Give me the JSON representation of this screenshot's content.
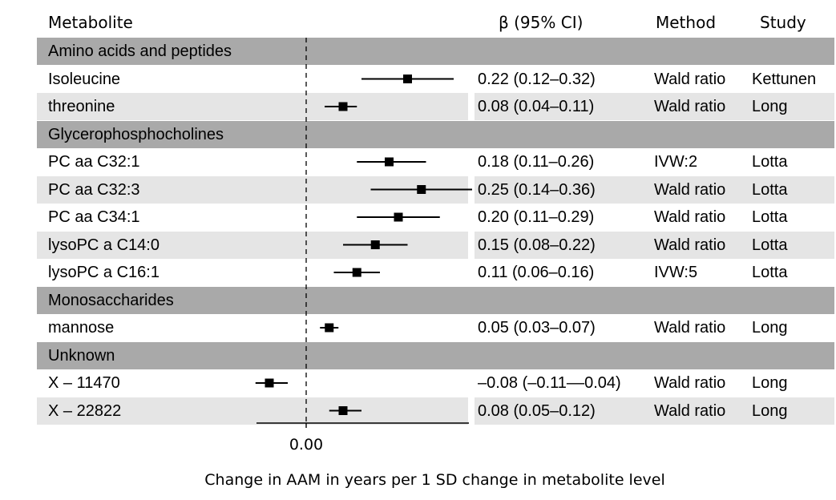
{
  "chart_data": {
    "type": "forest",
    "headers": {
      "metabolite": "Metabolite",
      "beta": "β (95% CI)",
      "method": "Method",
      "study": "Study"
    },
    "xlabel": "Change in AAM in years per 1 SD change in metabolite level",
    "xlim": [
      -0.12,
      0.36
    ],
    "reference_line": 0.0,
    "reference_label": "0.00",
    "rows": [
      {
        "kind": "group",
        "label": "Amino acids and peptides"
      },
      {
        "kind": "item",
        "label": "Isoleucine",
        "beta": 0.22,
        "lo": 0.12,
        "hi": 0.32,
        "ci_text": "0.22 (0.12–0.32)",
        "method": "Wald ratio",
        "study": "Kettunen"
      },
      {
        "kind": "item",
        "label": "threonine",
        "beta": 0.08,
        "lo": 0.04,
        "hi": 0.11,
        "ci_text": "0.08 (0.04–0.11)",
        "method": "Wald ratio",
        "study": "Long"
      },
      {
        "kind": "group",
        "label": "Glycerophosphocholines"
      },
      {
        "kind": "item",
        "label": "PC aa C32:1",
        "beta": 0.18,
        "lo": 0.11,
        "hi": 0.26,
        "ci_text": "0.18 (0.11–0.26)",
        "method": "IVW:2",
        "study": "Lotta"
      },
      {
        "kind": "item",
        "label": "PC aa C32:3",
        "beta": 0.25,
        "lo": 0.14,
        "hi": 0.36,
        "ci_text": "0.25 (0.14–0.36)",
        "method": "Wald ratio",
        "study": "Lotta"
      },
      {
        "kind": "item",
        "label": "PC aa C34:1",
        "beta": 0.2,
        "lo": 0.11,
        "hi": 0.29,
        "ci_text": "0.20 (0.11–0.29)",
        "method": "Wald ratio",
        "study": "Lotta"
      },
      {
        "kind": "item",
        "label": "lysoPC a C14:0",
        "beta": 0.15,
        "lo": 0.08,
        "hi": 0.22,
        "ci_text": "0.15 (0.08–0.22)",
        "method": "Wald ratio",
        "study": "Lotta"
      },
      {
        "kind": "item",
        "label": "lysoPC a C16:1",
        "beta": 0.11,
        "lo": 0.06,
        "hi": 0.16,
        "ci_text": "0.11 (0.06–0.16)",
        "method": "IVW:5",
        "study": "Lotta"
      },
      {
        "kind": "group",
        "label": "Monosaccharides"
      },
      {
        "kind": "item",
        "label": "mannose",
        "beta": 0.05,
        "lo": 0.03,
        "hi": 0.07,
        "ci_text": "0.05 (0.03–0.07)",
        "method": "Wald ratio",
        "study": "Long"
      },
      {
        "kind": "group",
        "label": "Unknown"
      },
      {
        "kind": "item",
        "label": "X – 11470",
        "beta": -0.08,
        "lo": -0.11,
        "hi": -0.04,
        "ci_text": "–0.08 (–0.11––0.04)",
        "method": "Wald ratio",
        "study": "Long"
      },
      {
        "kind": "item",
        "label": "X – 22822",
        "beta": 0.08,
        "lo": 0.05,
        "hi": 0.12,
        "ci_text": "0.08 (0.05–0.12)",
        "method": "Wald ratio",
        "study": "Long"
      }
    ]
  },
  "colors": {
    "group_band": "#a9a9a9",
    "alt_band": "#e5e5e5",
    "marker": "#000000"
  }
}
